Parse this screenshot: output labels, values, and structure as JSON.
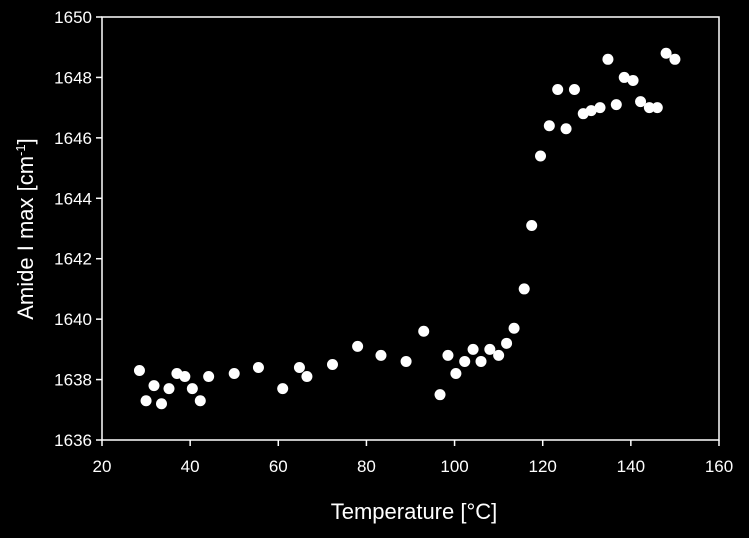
{
  "chart_data": {
    "type": "scatter",
    "title": "",
    "xlabel": "Temperature [°C]",
    "ylabel_main": "Amide I max [cm",
    "ylabel_sup": "-1",
    "ylabel_close": "]",
    "xlim": [
      20,
      160
    ],
    "ylim": [
      1636,
      1650
    ],
    "xticks": [
      20,
      40,
      60,
      80,
      100,
      120,
      140,
      160
    ],
    "yticks": [
      1636,
      1638,
      1640,
      1642,
      1644,
      1646,
      1648,
      1650
    ],
    "grid": false,
    "legend": "none",
    "colors": {
      "background": "#000000",
      "axis": "#ffffff",
      "marker": "#ffffff"
    },
    "points": [
      [
        28.5,
        1638.3
      ],
      [
        30.0,
        1637.3
      ],
      [
        31.8,
        1637.8
      ],
      [
        33.5,
        1637.2
      ],
      [
        35.2,
        1637.7
      ],
      [
        37.0,
        1638.2
      ],
      [
        38.8,
        1638.1
      ],
      [
        40.5,
        1637.7
      ],
      [
        42.3,
        1637.3
      ],
      [
        44.2,
        1638.1
      ],
      [
        50.0,
        1638.2
      ],
      [
        55.5,
        1638.4
      ],
      [
        61.0,
        1637.7
      ],
      [
        64.8,
        1638.4
      ],
      [
        66.5,
        1638.1
      ],
      [
        72.3,
        1638.5
      ],
      [
        78.0,
        1639.1
      ],
      [
        83.3,
        1638.8
      ],
      [
        89.0,
        1638.6
      ],
      [
        93.0,
        1639.6
      ],
      [
        96.7,
        1637.5
      ],
      [
        98.5,
        1638.8
      ],
      [
        100.3,
        1638.2
      ],
      [
        102.3,
        1638.6
      ],
      [
        104.2,
        1639.0
      ],
      [
        106.0,
        1638.6
      ],
      [
        108.0,
        1639.0
      ],
      [
        110.0,
        1638.8
      ],
      [
        111.8,
        1639.2
      ],
      [
        113.5,
        1639.7
      ],
      [
        115.8,
        1641.0
      ],
      [
        117.5,
        1643.1
      ],
      [
        119.5,
        1645.4
      ],
      [
        121.5,
        1646.4
      ],
      [
        123.4,
        1647.6
      ],
      [
        125.3,
        1646.3
      ],
      [
        127.2,
        1647.6
      ],
      [
        129.2,
        1646.8
      ],
      [
        131.0,
        1646.9
      ],
      [
        133.0,
        1647.0
      ],
      [
        134.8,
        1648.6
      ],
      [
        136.7,
        1647.1
      ],
      [
        138.5,
        1648.0
      ],
      [
        140.5,
        1647.9
      ],
      [
        142.2,
        1647.2
      ],
      [
        144.2,
        1647.0
      ],
      [
        146.0,
        1647.0
      ],
      [
        148.0,
        1648.8
      ],
      [
        150.0,
        1648.6
      ]
    ]
  }
}
